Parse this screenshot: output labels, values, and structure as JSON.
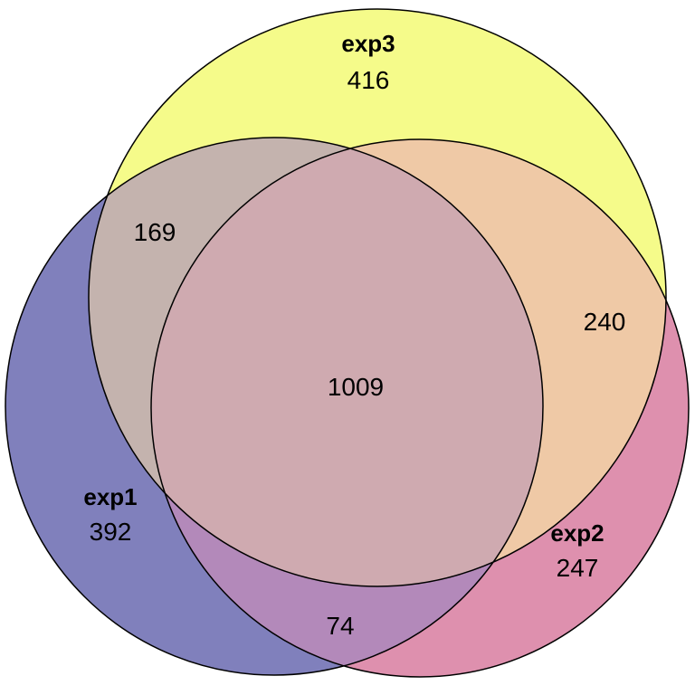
{
  "sets": [
    {
      "id": "exp1",
      "label": "exp1",
      "only_count": "392",
      "color": "#8080BC"
    },
    {
      "id": "exp2",
      "label": "exp2",
      "only_count": "247",
      "color": "#DE90AE"
    },
    {
      "id": "exp3",
      "label": "exp3",
      "only_count": "416",
      "color": "#F5FB8A"
    }
  ],
  "intersections": {
    "exp1_exp3": "169",
    "exp2_exp3": "240",
    "exp1_exp2": "74",
    "all": "1009"
  },
  "region_colors": {
    "exp1_exp3": "#C4B3AE",
    "exp2_exp3": "#EFC9A6",
    "exp1_exp2": "#B389BA",
    "all": "#CFAAB0"
  }
}
